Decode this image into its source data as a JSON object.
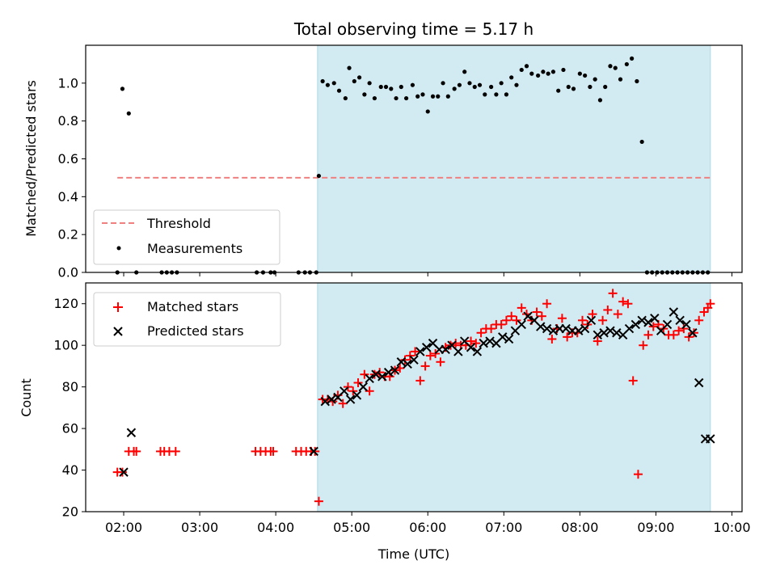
{
  "chart_data": [
    {
      "type": "scatter",
      "title": "Total observing time = 5.17 h",
      "xlabel": "",
      "ylabel": "Matched/Predicted stars",
      "xlim": [
        "01:30",
        "10:08"
      ],
      "ylim": [
        0,
        1.2
      ],
      "yticks": [
        0.0,
        0.2,
        0.4,
        0.6,
        0.8,
        1.0
      ],
      "ytick_labels": [
        "0.0",
        "0.2",
        "0.4",
        "0.6",
        "0.8",
        "1.0"
      ],
      "shaded_region": {
        "start": "04:33",
        "end": "09:43"
      },
      "threshold": {
        "name": "Threshold",
        "value": 0.5,
        "start": "01:55",
        "end": "09:43"
      },
      "legend": {
        "position": "lower-left",
        "entries": [
          "Threshold",
          "Measurements"
        ]
      },
      "series": [
        {
          "name": "Measurements",
          "x": [
            "01:55",
            "01:59",
            "02:04",
            "02:10",
            "02:30",
            "02:34",
            "02:38",
            "02:42",
            "03:45",
            "03:50",
            "03:56",
            "03:59",
            "04:18",
            "04:23",
            "04:27",
            "04:32",
            "04:34",
            "04:37",
            "04:41",
            "04:46",
            "04:50",
            "04:55",
            "04:58",
            "05:02",
            "05:06",
            "05:10",
            "05:14",
            "05:18",
            "05:23",
            "05:27",
            "05:31",
            "05:35",
            "05:39",
            "05:43",
            "05:48",
            "05:52",
            "05:56",
            "06:00",
            "06:04",
            "06:08",
            "06:12",
            "06:16",
            "06:21",
            "06:25",
            "06:29",
            "06:33",
            "06:37",
            "06:41",
            "06:45",
            "06:50",
            "06:54",
            "06:58",
            "07:02",
            "07:06",
            "07:10",
            "07:14",
            "07:18",
            "07:22",
            "07:27",
            "07:31",
            "07:35",
            "07:39",
            "07:43",
            "07:47",
            "07:51",
            "07:55",
            "08:00",
            "08:04",
            "08:08",
            "08:12",
            "08:16",
            "08:20",
            "08:24",
            "08:28",
            "08:32",
            "08:37",
            "08:41",
            "08:45",
            "08:49",
            "08:53",
            "08:57",
            "09:01",
            "09:05",
            "09:09",
            "09:13",
            "09:17",
            "09:21",
            "09:25",
            "09:29",
            "09:33",
            "09:37",
            "09:41"
          ],
          "y": [
            0.0,
            0.97,
            0.84,
            0.0,
            0.0,
            0.0,
            0.0,
            0.0,
            0.0,
            0.0,
            0.0,
            0.0,
            0.0,
            0.0,
            0.0,
            0.0,
            0.51,
            1.01,
            0.99,
            1.0,
            0.96,
            0.92,
            1.08,
            1.01,
            1.03,
            0.94,
            1.0,
            0.92,
            0.98,
            0.98,
            0.97,
            0.92,
            0.98,
            0.92,
            0.99,
            0.93,
            0.94,
            0.85,
            0.93,
            0.93,
            1.0,
            0.93,
            0.97,
            0.99,
            1.06,
            1.0,
            0.98,
            0.99,
            0.94,
            0.98,
            0.94,
            1.0,
            0.94,
            1.03,
            0.99,
            1.07,
            1.09,
            1.05,
            1.04,
            1.06,
            1.05,
            1.06,
            0.96,
            1.07,
            0.98,
            0.97,
            1.05,
            1.04,
            0.98,
            1.02,
            0.91,
            0.98,
            1.09,
            1.08,
            1.02,
            1.1,
            1.13,
            1.01,
            0.69,
            0.0,
            0.0,
            0.0,
            0.0,
            0.0,
            0.0,
            0.0,
            0.0,
            0.0,
            0.0,
            0.0,
            0.0,
            0.0
          ]
        }
      ]
    },
    {
      "type": "scatter",
      "title": "",
      "xlabel": "Time (UTC)",
      "ylabel": "Count",
      "xlim": [
        "01:30",
        "10:08"
      ],
      "ylim": [
        20,
        130
      ],
      "yticks": [
        20,
        40,
        60,
        80,
        100,
        120
      ],
      "ytick_labels": [
        "20",
        "40",
        "60",
        "80",
        "100",
        "120"
      ],
      "xticks": [
        "02:00",
        "03:00",
        "04:00",
        "05:00",
        "06:00",
        "07:00",
        "08:00",
        "09:00",
        "10:00"
      ],
      "shaded_region": {
        "start": "04:33",
        "end": "09:43"
      },
      "legend": {
        "position": "upper-left",
        "entries": [
          "Matched stars",
          "Predicted stars"
        ]
      },
      "series": [
        {
          "name": "Matched stars",
          "x": [
            "01:55",
            "01:59",
            "02:04",
            "02:08",
            "02:10",
            "02:29",
            "02:32",
            "02:36",
            "02:41",
            "03:44",
            "03:48",
            "03:52",
            "03:56",
            "03:58",
            "04:16",
            "04:20",
            "04:24",
            "04:28",
            "04:31",
            "04:34",
            "04:37",
            "04:41",
            "04:45",
            "04:49",
            "04:53",
            "04:57",
            "05:01",
            "05:05",
            "05:10",
            "05:14",
            "05:18",
            "05:22",
            "05:26",
            "05:30",
            "05:34",
            "05:38",
            "05:42",
            "05:46",
            "05:50",
            "05:54",
            "05:58",
            "06:02",
            "06:06",
            "06:10",
            "06:14",
            "06:18",
            "06:22",
            "06:26",
            "06:30",
            "06:34",
            "06:38",
            "06:42",
            "06:46",
            "06:50",
            "06:54",
            "06:58",
            "07:02",
            "07:06",
            "07:10",
            "07:14",
            "07:18",
            "07:22",
            "07:26",
            "07:30",
            "07:34",
            "07:38",
            "07:42",
            "07:46",
            "07:50",
            "07:54",
            "07:58",
            "08:02",
            "08:06",
            "08:10",
            "08:14",
            "08:18",
            "08:22",
            "08:26",
            "08:30",
            "08:34",
            "08:38",
            "08:42",
            "08:46",
            "08:50",
            "08:54",
            "08:58",
            "09:02",
            "09:06",
            "09:10",
            "09:14",
            "09:18",
            "09:22",
            "09:26",
            "09:30",
            "09:34",
            "09:38",
            "09:41",
            "09:43"
          ],
          "y": [
            39,
            39,
            49,
            49,
            49,
            49,
            49,
            49,
            49,
            49,
            49,
            49,
            49,
            49,
            49,
            49,
            49,
            49,
            49,
            25,
            74,
            74,
            73,
            76,
            72,
            80,
            78,
            82,
            86,
            78,
            86,
            87,
            85,
            85,
            88,
            89,
            93,
            95,
            97,
            83,
            90,
            95,
            96,
            92,
            99,
            100,
            101,
            100,
            100,
            102,
            101,
            106,
            108,
            108,
            110,
            110,
            112,
            114,
            112,
            118,
            115,
            112,
            116,
            114,
            120,
            103,
            108,
            113,
            104,
            106,
            106,
            112,
            110,
            115,
            102,
            112,
            117,
            125,
            115,
            121,
            120,
            83,
            38,
            100,
            105,
            109,
            110,
            108,
            105,
            105,
            107,
            108,
            104,
            106,
            112,
            116,
            118,
            120
          ]
        },
        {
          "name": "Predicted stars",
          "x": [
            "02:00",
            "02:06",
            "04:30",
            "04:39",
            "04:44",
            "04:49",
            "04:54",
            "04:59",
            "05:04",
            "05:09",
            "05:14",
            "05:19",
            "05:24",
            "05:29",
            "05:34",
            "05:39",
            "05:44",
            "05:49",
            "05:54",
            "05:59",
            "06:04",
            "06:09",
            "06:14",
            "06:19",
            "06:24",
            "06:29",
            "06:34",
            "06:39",
            "06:44",
            "06:49",
            "06:54",
            "06:59",
            "07:04",
            "07:09",
            "07:14",
            "07:19",
            "07:24",
            "07:29",
            "07:34",
            "07:39",
            "07:44",
            "07:49",
            "07:54",
            "07:59",
            "08:04",
            "08:09",
            "08:14",
            "08:19",
            "08:24",
            "08:29",
            "08:34",
            "08:39",
            "08:44",
            "08:49",
            "08:54",
            "08:59",
            "09:04",
            "09:09",
            "09:14",
            "09:19",
            "09:24",
            "09:29",
            "09:34",
            "09:39",
            "09:43"
          ],
          "y": [
            39,
            58,
            49,
            73,
            74,
            75,
            78,
            74,
            76,
            80,
            84,
            86,
            85,
            87,
            88,
            92,
            91,
            93,
            97,
            99,
            101,
            98,
            98,
            100,
            97,
            102,
            99,
            97,
            101,
            102,
            101,
            104,
            103,
            107,
            110,
            114,
            112,
            109,
            108,
            107,
            108,
            108,
            107,
            107,
            108,
            112,
            105,
            106,
            107,
            106,
            105,
            108,
            110,
            112,
            111,
            113,
            107,
            110,
            116,
            112,
            110,
            106,
            82,
            55,
            55
          ]
        }
      ]
    }
  ],
  "colors": {
    "shade": "#add8e6",
    "matched": "#ff0000",
    "predicted": "#000000",
    "threshold": "#f08080",
    "measurements": "#000000"
  }
}
